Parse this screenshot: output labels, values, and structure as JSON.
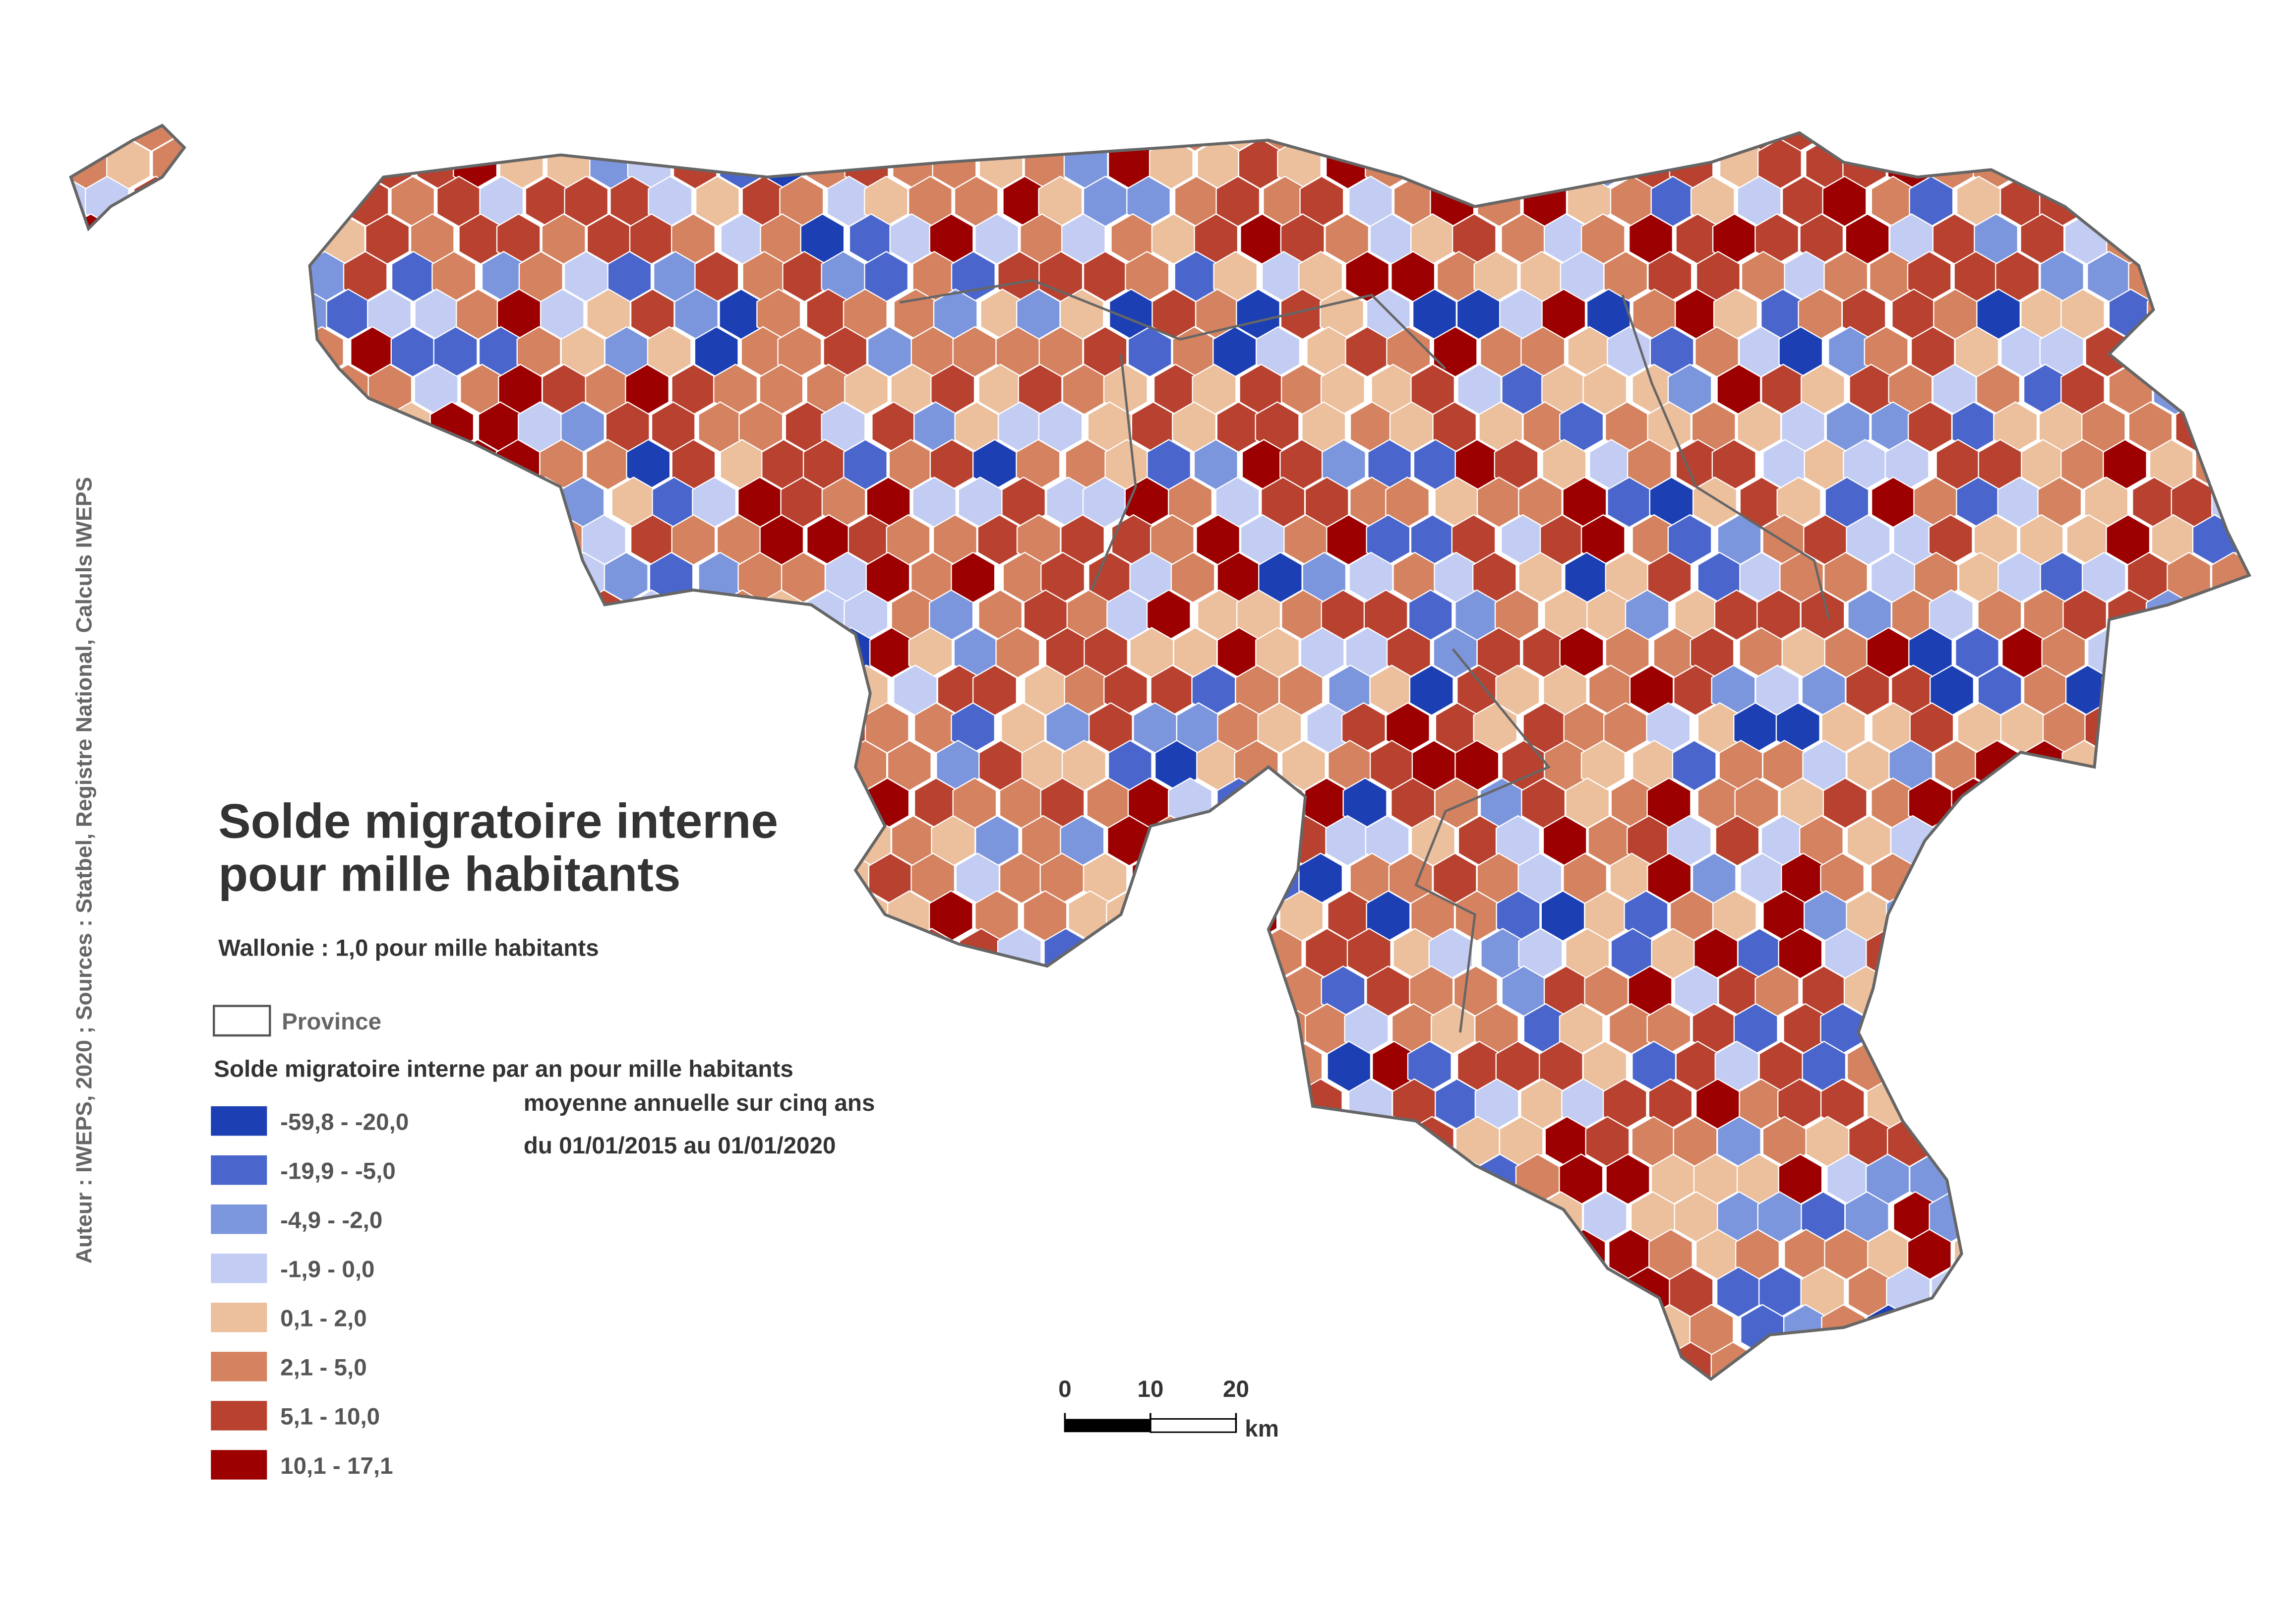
{
  "title_lines": [
    "Solde migratoire interne",
    "pour mille habitants"
  ],
  "subtitle": "Wallonie : 1,0 pour mille habitants",
  "province_label": "Province",
  "legend": {
    "title": "Solde migratoire interne par an pour mille habitants",
    "classes": [
      {
        "label": "-59,8 - -20,0",
        "color": "#1c3fb4"
      },
      {
        "label": "-19,9 - -5,0",
        "color": "#4a66cc"
      },
      {
        "label": "-4,9 - -2,0",
        "color": "#7c96de"
      },
      {
        "label": "-1,9 - 0,0",
        "color": "#c3cdf3"
      },
      {
        "label": "0,1 - 2,0",
        "color": "#ecbf9d"
      },
      {
        "label": "2,1 - 5,0",
        "color": "#d4825f"
      },
      {
        "label": "5,1 - 10,0",
        "color": "#b8412f"
      },
      {
        "label": "10,1 - 17,1",
        "color": "#9c0000"
      }
    ]
  },
  "note": [
    "moyenne annuelle sur cinq ans",
    "du 01/01/2015 au 01/01/2020"
  ],
  "scale_bar": {
    "ticks": [
      0,
      10,
      20
    ],
    "unit": "km"
  },
  "source": "Auteur : IWEPS, 2020 ; Sources : Statbel, Registre National, Calculs IWEPS"
}
